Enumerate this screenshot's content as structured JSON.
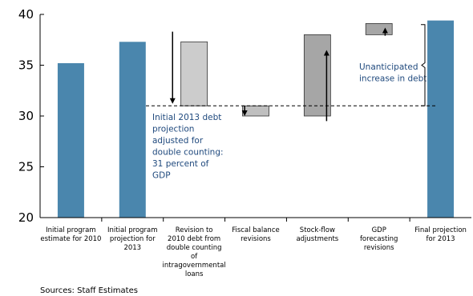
{
  "chart_data": {
    "type": "bar",
    "subtype": "waterfall",
    "title": "",
    "xlabel": "",
    "ylabel": "",
    "ylim": [
      20,
      40
    ],
    "yticks": [
      20,
      25,
      30,
      35,
      40
    ],
    "grid": false,
    "categories": [
      [
        "Initial program",
        "estimate for 2010"
      ],
      [
        "Initial program",
        "projection for",
        "2013"
      ],
      [
        "Revision to",
        "2010 debt from",
        "double counting",
        "of",
        "intragovernmental",
        "loans"
      ],
      [
        "Fiscal balance",
        "revisions"
      ],
      [
        "Stock-flow",
        "adjustments"
      ],
      [
        "GDP",
        "forecasting",
        "revisions"
      ],
      [
        "Final projection",
        "for 2013"
      ]
    ],
    "bars": [
      {
        "base": 20,
        "value": 35.2,
        "color": "#4a86ad"
      },
      {
        "base": 20,
        "value": 37.3,
        "color": "#4a86ad"
      },
      {
        "base": 31.0,
        "value": 37.3,
        "color": "#cccccc"
      },
      {
        "base": 30.0,
        "value": 31.0,
        "color": "#bfbfbf"
      },
      {
        "base": 30.0,
        "value": 38.0,
        "color": "#a6a6a6"
      },
      {
        "base": 38.0,
        "value": 39.1,
        "color": "#a6a6a6"
      },
      {
        "base": 20,
        "value": 39.4,
        "color": "#4a86ad"
      }
    ],
    "reference_line": {
      "y": 31.0,
      "style": "dashed"
    },
    "arrows": [
      {
        "category_index": 1.65,
        "from": 38.3,
        "to": 31.2
      },
      {
        "category_index": 2.82,
        "from": 31.0,
        "to": 30.0
      },
      {
        "category_index": 4.15,
        "from": 29.5,
        "to": 36.5
      },
      {
        "category_index": 5.1,
        "from": 37.9,
        "to": 38.7
      }
    ],
    "annotations": [
      {
        "lines": [
          "Initial 2013 debt",
          "projection",
          "adjusted for",
          "double counting:",
          "31 percent of",
          "GDP"
        ]
      },
      {
        "lines": [
          "Unanticipated",
          "increase in debt"
        ]
      }
    ],
    "brace": {
      "from": 31.0,
      "to": 39.0
    }
  },
  "source": "Sources: Staff Estimates"
}
